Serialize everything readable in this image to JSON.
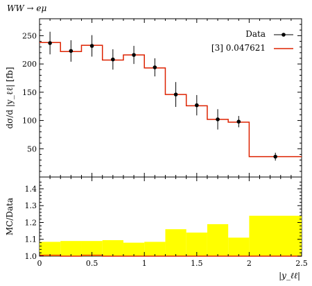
{
  "chart_data": [
    {
      "type": "step-histogram",
      "panel": "main",
      "title": "WW → eμ",
      "ylabel": "dσ/d |y_ℓℓ| [fb]",
      "xlim": [
        0,
        2.5
      ],
      "ylim": [
        0,
        280
      ],
      "yticks": [
        50,
        100,
        150,
        200,
        250
      ],
      "legend": {
        "placement": "top-right",
        "data_label": "Data",
        "mc_label": "[3] 0.047621"
      },
      "bin_edges": [
        0,
        0.2,
        0.4,
        0.6,
        0.8,
        1.0,
        1.2,
        1.4,
        1.6,
        1.8,
        2.0,
        2.5
      ],
      "mc_values": [
        238,
        222,
        233,
        207,
        216,
        193,
        146,
        126,
        102,
        97,
        36
      ],
      "data": [
        {
          "x": 0.1,
          "y": 237,
          "err": 20
        },
        {
          "x": 0.3,
          "y": 223,
          "err": 19
        },
        {
          "x": 0.5,
          "y": 232,
          "err": 19
        },
        {
          "x": 0.7,
          "y": 208,
          "err": 18
        },
        {
          "x": 0.9,
          "y": 216,
          "err": 16
        },
        {
          "x": 1.1,
          "y": 194,
          "err": 16
        },
        {
          "x": 1.3,
          "y": 146,
          "err": 22
        },
        {
          "x": 1.5,
          "y": 127,
          "err": 18
        },
        {
          "x": 1.7,
          "y": 102,
          "err": 18
        },
        {
          "x": 1.9,
          "y": 98,
          "err": 10
        },
        {
          "x": 2.25,
          "y": 36,
          "err": 7
        }
      ]
    },
    {
      "type": "ratio-band",
      "panel": "ratio",
      "ylabel": "MC/Data",
      "xlabel": "|y_ℓℓ|",
      "xlim": [
        0,
        2.5
      ],
      "ylim": [
        1.0,
        1.47
      ],
      "yticks": [
        1.0,
        1.1,
        1.2,
        1.3,
        1.4
      ],
      "ytick_labels": [
        "1.0",
        "1.1",
        "1.2",
        "1.3",
        "1.4"
      ],
      "xticks": [
        0,
        0.5,
        1,
        1.5,
        2,
        2.5
      ],
      "xtick_labels": [
        "0",
        "0.5",
        "1",
        "1.5",
        "2",
        "2.5"
      ],
      "bin_edges": [
        0,
        0.2,
        0.4,
        0.6,
        0.8,
        1.0,
        1.2,
        1.4,
        1.6,
        1.8,
        2.0,
        2.5
      ],
      "band_upper": [
        1.085,
        1.09,
        1.09,
        1.095,
        1.08,
        1.085,
        1.16,
        1.14,
        1.19,
        1.11,
        1.24
      ],
      "band_lower": [
        1.0,
        1.0,
        1.0,
        1.0,
        1.0,
        1.0,
        1.0,
        1.0,
        1.0,
        1.0,
        1.0
      ],
      "ratio_values": [
        1.005,
        1.0,
        1.005,
        1.0,
        1.0,
        1.0,
        1.0,
        1.0,
        1.0,
        1.0,
        1.0
      ],
      "band_color": "#ffff00",
      "mc_color": "#dd2200"
    }
  ]
}
